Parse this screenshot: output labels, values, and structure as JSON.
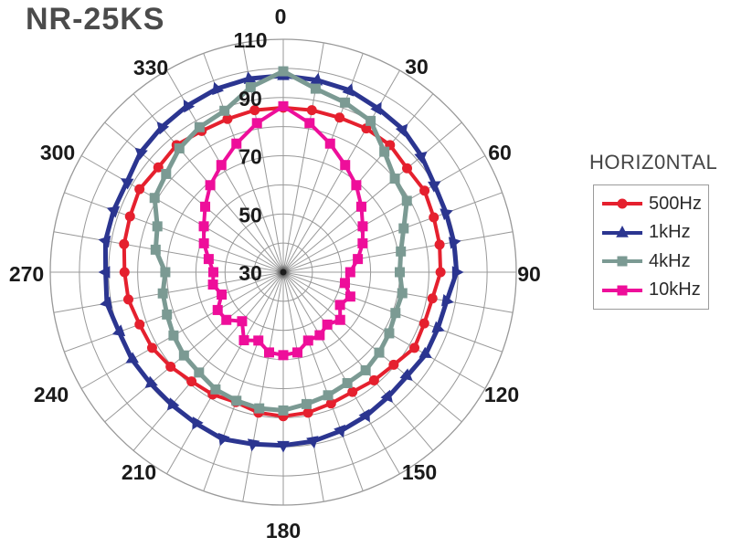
{
  "title": "NR-25KS",
  "legend": {
    "title": "HORIZ0NTAL",
    "entries": [
      {
        "label": "500Hz",
        "color": "#e5202e",
        "marker": "circle"
      },
      {
        "label": "1kHz",
        "color": "#2b3590",
        "marker": "triangle"
      },
      {
        "label": "4kHz",
        "color": "#7b9a93",
        "marker": "square"
      },
      {
        "label": "10kHz",
        "color": "#ee0e9a",
        "marker": "square"
      }
    ]
  },
  "chart_data": {
    "type": "line",
    "subtype": "polar-pattern",
    "angle_labels": [
      "0",
      "30",
      "60",
      "90",
      "120",
      "150",
      "180",
      "210",
      "240",
      "270",
      "300",
      "330"
    ],
    "angle_step_deg": 10,
    "radial_axis": {
      "min": 30,
      "max": 110,
      "ring_step": 10,
      "tick_labels": [
        "110",
        "90",
        "70",
        "50",
        "30"
      ]
    },
    "grid": true,
    "grid_color": "#999999",
    "legend_position": "right",
    "series": [
      {
        "name": "500Hz",
        "color": "#e5202e",
        "marker": "circle",
        "line_width": 4,
        "values": [
          86.5,
          86.5,
          86.5,
          87,
          87,
          85.5,
          86,
          85,
          84.5,
          84,
          82,
          81.5,
          82,
          79.5,
          78.5,
          77.5,
          78,
          79,
          79.5,
          79,
          77.5,
          78.5,
          79,
          80.5,
          82,
          82.5,
          84,
          84.5,
          85.5,
          86,
          87,
          86,
          87,
          86,
          86,
          86.5
        ]
      },
      {
        "name": "1kHz",
        "color": "#2b3590",
        "marker": "triangle",
        "line_width": 5,
        "values": [
          97.5,
          97,
          96.5,
          95,
          94,
          92,
          90,
          89.5,
          89.5,
          89.5,
          87,
          86.5,
          86.5,
          85.5,
          86,
          87,
          88,
          89,
          89.5,
          90,
          91,
          90,
          89.5,
          89.5,
          90,
          90,
          91.5,
          91,
          92,
          92,
          92,
          94,
          95,
          96,
          97,
          97.5
        ]
      },
      {
        "name": "4kHz",
        "color": "#7b9a93",
        "marker": "square",
        "line_width": 5,
        "values": [
          99,
          94,
          92,
          90,
          84,
          80,
          79,
          74,
          71,
          70,
          71.5,
          71,
          72,
          73,
          74,
          74,
          75,
          76,
          77.5,
          77.5,
          77,
          76.5,
          75,
          74.5,
          73.5,
          72.5,
          72,
          70.5,
          74.5,
          76,
          81,
          82.5,
          85.5,
          87.5,
          89,
          94.5
        ]
      },
      {
        "name": "10kHz",
        "color": "#ee0e9a",
        "marker": "square",
        "line_width": 4,
        "values": [
          87,
          82,
          77,
          72.5,
          69,
          65,
          61.5,
          59,
          56,
          53,
          51.5,
          54.5,
          52.5,
          55.5,
          53.5,
          55,
          55,
          58,
          58.5,
          58,
          55,
          57,
          52,
          55.5,
          56,
          52.5,
          54.5,
          54,
          56,
          59,
          61.5,
          65,
          69,
          72.5,
          77,
          82
        ]
      }
    ]
  }
}
